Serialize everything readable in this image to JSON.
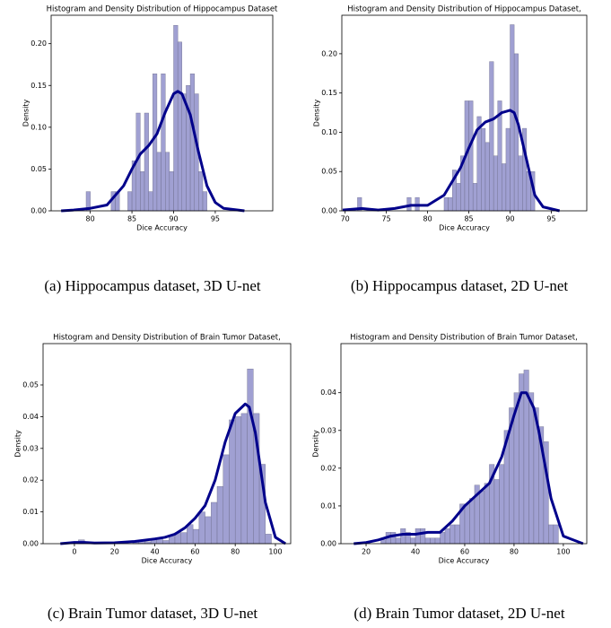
{
  "chart_data": [
    {
      "type": "histogram",
      "title": "Histogram and Density Distribution of Hippocampus Dataset",
      "xlabel": "Dice Accuracy",
      "ylabel": "Density",
      "caption": "(a) Hippocampus dataset, 3D U-net",
      "bar_color": "#8f8fca",
      "line_color": "#00008b",
      "bins": [
        79.5,
        80,
        80.5,
        81,
        81.5,
        82,
        82.5,
        83,
        83.5,
        84,
        84.5,
        85,
        85.5,
        86,
        86.5,
        87,
        87.5,
        88,
        88.5,
        89,
        89.5,
        90,
        90.5,
        91,
        91.5,
        92,
        92.5,
        93,
        93.5,
        94
      ],
      "counts": [
        0.023,
        0,
        0,
        0,
        0,
        0,
        0.023,
        0.023,
        0,
        0,
        0.023,
        0.06,
        0.117,
        0.047,
        0.117,
        0.023,
        0.164,
        0.07,
        0.164,
        0.07,
        0.047,
        0.222,
        0.202,
        0.14,
        0.15,
        0.164,
        0.14,
        0.047,
        0.023
      ],
      "kde": {
        "x": [
          76.5,
          78,
          80,
          82,
          84,
          85,
          86,
          87,
          88,
          89,
          90,
          90.5,
          91,
          92,
          93,
          94,
          95,
          96,
          98.5
        ],
        "y": [
          0,
          0.001,
          0.003,
          0.007,
          0.03,
          0.05,
          0.068,
          0.078,
          0.092,
          0.118,
          0.14,
          0.143,
          0.14,
          0.115,
          0.07,
          0.03,
          0.01,
          0.003,
          0
        ]
      },
      "xlim": [
        75.3,
        101.9
      ],
      "xticks": [
        80,
        85,
        90,
        95
      ],
      "ylim": [
        0,
        0.234
      ],
      "yticks": [
        {
          "value": 0,
          "label": "0.00"
        },
        {
          "value": 0.05,
          "label": "0.05"
        },
        {
          "value": 0.1,
          "label": "0.10"
        },
        {
          "value": 0.15,
          "label": "0.15"
        },
        {
          "value": 0.2,
          "label": "0.20"
        }
      ]
    },
    {
      "type": "histogram",
      "title": "Histogram and Density Distribution of Hippocampus Dataset,",
      "xlabel": "Dice Accuracy",
      "ylabel": "Density",
      "caption": "(b) Hippocampus dataset, 2D U-net",
      "bar_color": "#8f8fca",
      "line_color": "#00008b",
      "bins": [
        71.5,
        72,
        72.5,
        73,
        73.5,
        74,
        74.5,
        75,
        75.5,
        76,
        76.5,
        77,
        77.5,
        78,
        78.5,
        79,
        79.5,
        80,
        80.5,
        81,
        81.5,
        82,
        82.5,
        83,
        83.5,
        84,
        84.5,
        85,
        85.5,
        86,
        86.5,
        87,
        87.5,
        88,
        88.5,
        89,
        89.5,
        90,
        90.5,
        91,
        91.5,
        92,
        92.5,
        93
      ],
      "counts": [
        0.017,
        0,
        0,
        0,
        0,
        0,
        0,
        0,
        0,
        0,
        0,
        0,
        0.017,
        0,
        0.017,
        0,
        0,
        0,
        0,
        0,
        0,
        0.017,
        0.017,
        0.052,
        0.035,
        0.07,
        0.14,
        0.14,
        0.035,
        0.12,
        0.105,
        0.087,
        0.19,
        0.07,
        0.14,
        0.06,
        0.105,
        0.237,
        0.2,
        0.07,
        0.105,
        0.05,
        0.05
      ],
      "kde": {
        "x": [
          69.7,
          72,
          74,
          76,
          78,
          80,
          82,
          84,
          85,
          86,
          87,
          88,
          89,
          90,
          90.5,
          91,
          92,
          93,
          94,
          96
        ],
        "y": [
          0.001,
          0.003,
          0.001,
          0.003,
          0.007,
          0.007,
          0.02,
          0.055,
          0.08,
          0.103,
          0.113,
          0.117,
          0.125,
          0.128,
          0.125,
          0.11,
          0.065,
          0.02,
          0.005,
          0
        ]
      },
      "xlim": [
        69.6,
        99.3
      ],
      "xticks": [
        70,
        75,
        80,
        85,
        90,
        95
      ],
      "ylim": [
        0,
        0.249
      ],
      "yticks": [
        {
          "value": 0,
          "label": "0.00"
        },
        {
          "value": 0.05,
          "label": "0.05"
        },
        {
          "value": 0.1,
          "label": "0.10"
        },
        {
          "value": 0.15,
          "label": "0.15"
        },
        {
          "value": 0.2,
          "label": "0.20"
        }
      ]
    },
    {
      "type": "histogram",
      "title": "Histogram and Density Distribution of Brain Tumor Dataset,",
      "xlabel": "Dice Accuracy",
      "ylabel": "Density",
      "caption": "(c) Brain Tumor dataset, 3D U-net",
      "bar_color": "#8f8fca",
      "line_color": "#00008b",
      "bins": [
        2,
        5,
        8,
        11,
        14,
        17,
        20,
        23,
        26,
        29,
        32,
        35,
        38,
        41,
        44,
        47,
        50,
        53,
        56,
        59,
        62,
        65,
        68,
        71,
        74,
        77,
        80,
        83,
        86,
        89,
        92,
        95,
        98
      ],
      "counts": [
        0.0012,
        0,
        0,
        0,
        0,
        0,
        0,
        0,
        0,
        0.0006,
        0.001,
        0.0006,
        0.0012,
        0.0018,
        0.001,
        0.0024,
        0.0035,
        0.0035,
        0.006,
        0.0045,
        0.01,
        0.0085,
        0.013,
        0.018,
        0.028,
        0.039,
        0.04,
        0.041,
        0.055,
        0.041,
        0.025,
        0.003
      ],
      "kde": {
        "x": [
          -7,
          0,
          5,
          10,
          20,
          30,
          40,
          45,
          50,
          55,
          60,
          65,
          70,
          75,
          80,
          85,
          87,
          90,
          95,
          100,
          105
        ],
        "y": [
          0,
          0.0004,
          0.0004,
          0.0002,
          0.0003,
          0.0007,
          0.0015,
          0.002,
          0.003,
          0.005,
          0.008,
          0.012,
          0.02,
          0.032,
          0.041,
          0.044,
          0.043,
          0.035,
          0.013,
          0.002,
          0
        ]
      },
      "xlim": [
        -15.6,
        107.6
      ],
      "xticks": [
        0,
        20,
        40,
        60,
        80,
        100
      ],
      "ylim": [
        0,
        0.063
      ],
      "yticks": [
        {
          "value": 0,
          "label": "0.00"
        },
        {
          "value": 0.01,
          "label": "0.01"
        },
        {
          "value": 0.02,
          "label": "0.02"
        },
        {
          "value": 0.03,
          "label": "0.03"
        },
        {
          "value": 0.04,
          "label": "0.04"
        },
        {
          "value": 0.05,
          "label": "0.05"
        }
      ]
    },
    {
      "type": "histogram",
      "title": "Histogram and Density Distribution of Brain Tumor Dataset,",
      "xlabel": "Dice Accuracy",
      "ylabel": "Density",
      "caption": "(d) Brain Tumor dataset, 2D U-net",
      "bar_color": "#8f8fca",
      "line_color": "#00008b",
      "bins": [
        26,
        28,
        30,
        32,
        34,
        36,
        38,
        40,
        42,
        44,
        46,
        48,
        50,
        52,
        54,
        56,
        58,
        60,
        62,
        64,
        66,
        68,
        70,
        72,
        74,
        76,
        78,
        80,
        82,
        84,
        86,
        88,
        90,
        92,
        94,
        96,
        98
      ],
      "counts": [
        0.001,
        0.003,
        0.003,
        0.0015,
        0.004,
        0.003,
        0.0015,
        0.004,
        0.004,
        0.0015,
        0.0015,
        0.0015,
        0.003,
        0.004,
        0.005,
        0.005,
        0.0105,
        0.0105,
        0.012,
        0.0155,
        0.014,
        0.016,
        0.021,
        0.017,
        0.021,
        0.03,
        0.036,
        0.04,
        0.045,
        0.046,
        0.04,
        0.036,
        0.031,
        0.027,
        0.005,
        0.005
      ],
      "kde": {
        "x": [
          15,
          20,
          25,
          30,
          35,
          40,
          45,
          50,
          55,
          60,
          65,
          70,
          75,
          80,
          83,
          85,
          88,
          90,
          95,
          100,
          108
        ],
        "y": [
          0,
          0.0003,
          0.001,
          0.002,
          0.0025,
          0.0025,
          0.003,
          0.003,
          0.006,
          0.01,
          0.013,
          0.016,
          0.023,
          0.034,
          0.04,
          0.04,
          0.036,
          0.03,
          0.012,
          0.002,
          0
        ]
      },
      "xlim": [
        9.8,
        109.5
      ],
      "xticks": [
        20,
        40,
        60,
        80,
        100
      ],
      "ylim": [
        0,
        0.053
      ],
      "yticks": [
        {
          "value": 0,
          "label": "0.00"
        },
        {
          "value": 0.01,
          "label": "0.01"
        },
        {
          "value": 0.02,
          "label": "0.02"
        },
        {
          "value": 0.03,
          "label": "0.03"
        },
        {
          "value": 0.04,
          "label": "0.04"
        }
      ]
    }
  ]
}
